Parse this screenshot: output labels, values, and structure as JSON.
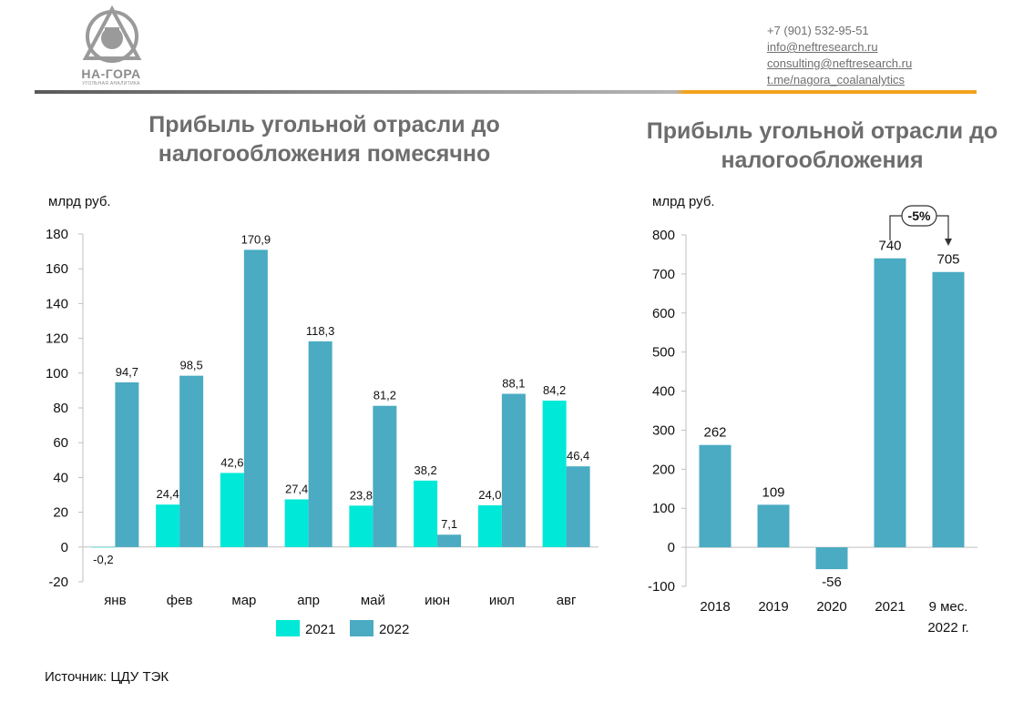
{
  "logo": {
    "name": "НА-ГОРА",
    "subtitle": "УГОЛЬНАЯ АНАЛИТИКА"
  },
  "contacts": {
    "phone": "+7 (901) 532-95-51",
    "email1": "info@neftresearch.ru",
    "email2": "consulting@neftresearch.ru",
    "telegram": "t.me/nagora_coalanalytics"
  },
  "source": "Источник: ЦДУ ТЭК",
  "colors": {
    "y2021": "#00e8d8",
    "y2022": "#4aabc2",
    "title": "#6d6d6d",
    "accent": "#f2a21c"
  },
  "chart_data": [
    {
      "type": "bar",
      "title": "Прибыль угольной отрасли до налогообложения помесячно",
      "ylabel": "млрд руб.",
      "ylim": [
        -20,
        180
      ],
      "yticks": [
        -20,
        0,
        20,
        40,
        60,
        80,
        100,
        120,
        140,
        160,
        180
      ],
      "categories": [
        "янв",
        "фев",
        "мар",
        "апр",
        "май",
        "июн",
        "июл",
        "авг"
      ],
      "series": [
        {
          "name": "2021",
          "values": [
            -0.2,
            24.4,
            42.6,
            27.4,
            23.8,
            38.2,
            24.0,
            84.2
          ],
          "labels": [
            "-0,2",
            "24,4",
            "42,6",
            "27,4",
            "23,8",
            "38,2",
            "24,0",
            "84,2"
          ]
        },
        {
          "name": "2022",
          "values": [
            94.7,
            98.5,
            170.9,
            118.3,
            81.2,
            7.1,
            88.1,
            46.4
          ],
          "labels": [
            "94,7",
            "98,5",
            "170,9",
            "118,3",
            "81,2",
            "7,1",
            "88,1",
            "46,4"
          ]
        }
      ],
      "legend": "bottom"
    },
    {
      "type": "bar",
      "title": "Прибыль угольной отрасли до налогообложения",
      "ylabel": "млрд руб.",
      "ylim": [
        -100,
        800
      ],
      "yticks": [
        -100,
        0,
        100,
        200,
        300,
        400,
        500,
        600,
        700,
        800
      ],
      "categories": [
        "2018",
        "2019",
        "2020",
        "2021",
        "9 мес. 2022 г."
      ],
      "category_lines": [
        [
          "2018"
        ],
        [
          "2019"
        ],
        [
          "2020"
        ],
        [
          "2021"
        ],
        [
          "9 мес.",
          "2022 г."
        ]
      ],
      "values": [
        262,
        109,
        -56,
        740,
        705
      ],
      "labels": [
        "262",
        "109",
        "-56",
        "740",
        "705"
      ],
      "annotation": "-5%"
    }
  ]
}
